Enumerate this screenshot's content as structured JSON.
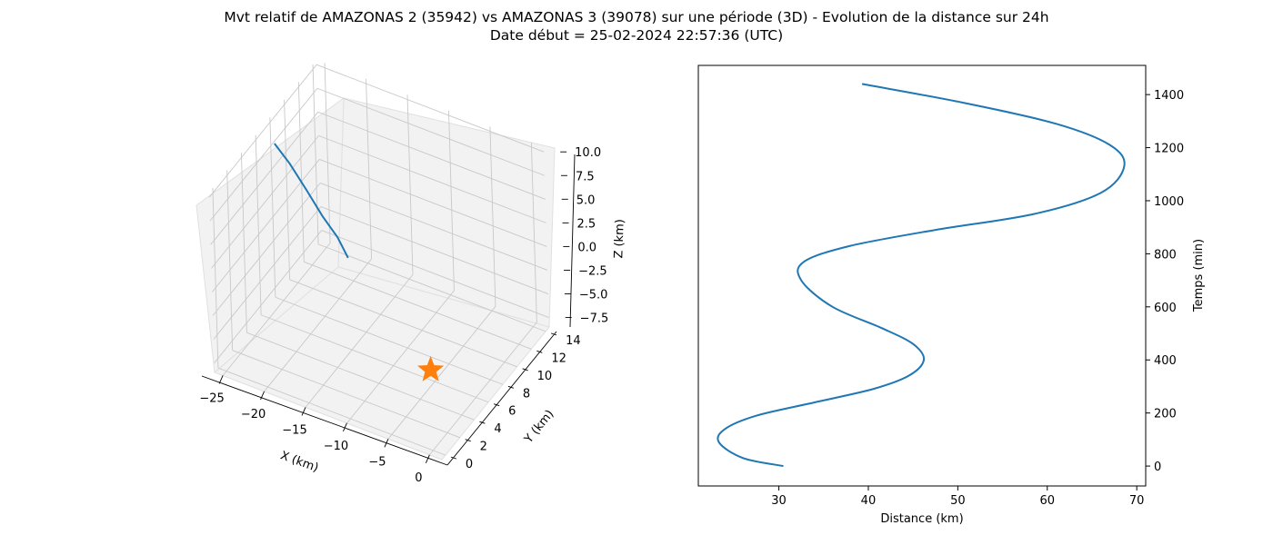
{
  "figure": {
    "title_line1": "Mvt relatif de AMAZONAS 2 (35942) vs AMAZONAS 3 (39078) sur une période (3D) - Evolution de la distance sur 24h",
    "title_line2": "Date début = 25-02-2024 22:57:36 (UTC)"
  },
  "colors": {
    "trajectory": "#1f77b4",
    "marker": "#ff7f0e",
    "pane": "#f2f2f2",
    "grid": "#c8c8c8"
  },
  "chart_data": [
    {
      "type": "line",
      "subtype": "3d",
      "title": "",
      "xlabel": "X (km)",
      "ylabel": "Y (km)",
      "zlabel": "Z (km)",
      "xticks": [
        "−25",
        "−20",
        "−15",
        "−10",
        "−5",
        "0"
      ],
      "yticks": [
        "0",
        "2",
        "4",
        "6",
        "8",
        "10",
        "12",
        "14"
      ],
      "zticks": [
        "10.0",
        "7.5",
        "5.0",
        "2.5",
        "0.0",
        "−2.5",
        "−5.0",
        "−7.5"
      ],
      "xlim": [
        -26,
        1.5
      ],
      "ylim": [
        -0.5,
        14.5
      ],
      "zlim": [
        -8.5,
        10.5
      ],
      "grid": true,
      "series": [
        {
          "kind": "trajectory",
          "x": [
            -21.5,
            -21.8,
            -22.2,
            -22.7,
            -23.3,
            -24.0
          ],
          "y": [
            13.0,
            12.0,
            10.5,
            9.0,
            7.5,
            6.3
          ],
          "z": [
            -7.5,
            -4.5,
            -1.0,
            3.0,
            7.0,
            10.0
          ]
        },
        {
          "kind": "marker",
          "marker": "star",
          "x": [
            0
          ],
          "y": [
            0
          ],
          "z": [
            0
          ]
        }
      ]
    },
    {
      "type": "line",
      "title": "",
      "xlabel": "Distance (km)",
      "ylabel": "Temps (min)",
      "yaxis_position": "right",
      "xlim": [
        21,
        71
      ],
      "ylim": [
        -75,
        1510
      ],
      "xticks": [
        30,
        40,
        50,
        60,
        70
      ],
      "yticks": [
        0,
        200,
        400,
        600,
        800,
        1000,
        1200,
        1400
      ],
      "grid": false,
      "series": [
        {
          "x": [
            30.5,
            26.0,
            23.3,
            24.0,
            27.5,
            34.0,
            40.5,
            44.5,
            46.2,
            45.0,
            41.5,
            36.0,
            32.5,
            32.8,
            38.0,
            47.5,
            58.5,
            66.0,
            68.6,
            67.0,
            61.0,
            50.5,
            39.3
          ],
          "y": [
            0,
            30,
            90,
            140,
            190,
            240,
            290,
            340,
            400,
            460,
            520,
            600,
            700,
            770,
            830,
            890,
            950,
            1030,
            1130,
            1210,
            1290,
            1370,
            1440
          ]
        }
      ]
    }
  ]
}
